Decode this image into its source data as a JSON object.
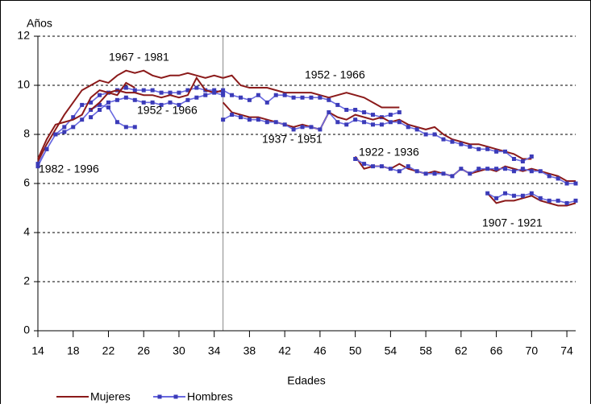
{
  "chart_data": {
    "type": "line",
    "y_label": "Años",
    "x_label": "Edades",
    "xlim": [
      14,
      75
    ],
    "xticks": [
      14,
      18,
      22,
      26,
      30,
      34,
      38,
      42,
      46,
      50,
      54,
      58,
      62,
      66,
      70,
      74
    ],
    "ylim": [
      0,
      12
    ],
    "yticks": [
      0,
      2,
      4,
      6,
      8,
      10,
      12
    ],
    "grid": true,
    "divider": 35,
    "annotations": [
      "1967 - 1981",
      "1952 - 1966",
      "1952 - 1966",
      "1982 - 1996",
      "1937 - 1951",
      "1922 - 1936",
      "1907 - 1921"
    ],
    "series": [
      {
        "name": "Mujeres",
        "color": "#8b1a1a",
        "x": [
          14,
          15,
          16,
          17,
          18,
          19,
          20,
          21,
          22,
          23,
          24,
          25,
          26,
          27,
          28,
          29,
          30,
          31,
          32,
          33,
          34,
          35
        ],
        "values": [
          6.9,
          7.6,
          8.2,
          8.8,
          9.3,
          9.8,
          10.0,
          10.2,
          10.1,
          10.4,
          10.6,
          10.5,
          10.6,
          10.4,
          10.3,
          10.4,
          10.4,
          10.5,
          10.4,
          10.3,
          10.4,
          10.3
        ]
      },
      {
        "name": "Hombres",
        "color": "#6a6ae0",
        "x": [
          14,
          15,
          16,
          17,
          18,
          19,
          20,
          21,
          22,
          23,
          24,
          25,
          26,
          27,
          28,
          29,
          30,
          31,
          32,
          33,
          34,
          35
        ],
        "values": [
          6.7,
          7.4,
          8.0,
          8.3,
          8.7,
          9.2,
          9.3,
          9.6,
          9.7,
          9.8,
          9.9,
          9.8,
          9.8,
          9.8,
          9.7,
          9.7,
          9.7,
          9.8,
          9.9,
          9.8,
          9.8,
          9.7
        ]
      },
      {
        "name": "Mujeres",
        "color": "#8b1a1a",
        "x": [
          14,
          15,
          16,
          17,
          18,
          19,
          20,
          21,
          22,
          23,
          24,
          25
        ],
        "values": [
          7.0,
          7.8,
          8.4,
          8.5,
          8.6,
          8.8,
          9.5,
          9.8,
          9.7,
          9.6,
          10.1,
          9.9
        ]
      },
      {
        "name": "Hombres",
        "color": "#6a6ae0",
        "x": [
          14,
          15,
          16,
          17,
          18,
          19,
          20,
          21,
          22,
          23,
          24,
          25
        ],
        "values": [
          6.8,
          7.4,
          8.0,
          8.1,
          8.3,
          8.6,
          9.0,
          9.2,
          9.1,
          8.5,
          8.3,
          8.3
        ]
      },
      {
        "name": "Mujeres",
        "color": "#8b1a1a",
        "x": [
          20,
          21,
          22,
          23,
          24,
          25,
          26,
          27,
          28,
          29,
          30,
          31,
          32,
          33,
          34,
          35
        ],
        "values": [
          9.0,
          9.3,
          9.7,
          9.8,
          9.7,
          9.7,
          9.6,
          9.6,
          9.5,
          9.6,
          9.5,
          9.6,
          10.3,
          9.8,
          9.7,
          9.8
        ]
      },
      {
        "name": "Hombres",
        "color": "#6a6ae0",
        "x": [
          20,
          21,
          22,
          23,
          24,
          25,
          26,
          27,
          28,
          29,
          30,
          31,
          32,
          33,
          34,
          35
        ],
        "values": [
          8.7,
          9.0,
          9.3,
          9.4,
          9.5,
          9.4,
          9.3,
          9.3,
          9.2,
          9.3,
          9.2,
          9.4,
          9.5,
          9.6,
          9.7,
          9.6
        ]
      },
      {
        "name": "Mujeres",
        "color": "#8b1a1a",
        "x": [
          35,
          36,
          37,
          38,
          39,
          40,
          41,
          42,
          43,
          44,
          45,
          46,
          47,
          48,
          49,
          50,
          51,
          52,
          53,
          54,
          55
        ],
        "values": [
          10.3,
          10.4,
          10.0,
          9.9,
          9.9,
          9.9,
          9.8,
          9.7,
          9.7,
          9.7,
          9.7,
          9.6,
          9.5,
          9.6,
          9.7,
          9.6,
          9.5,
          9.3,
          9.1,
          9.1,
          9.1
        ]
      },
      {
        "name": "Hombres",
        "color": "#6a6ae0",
        "x": [
          35,
          36,
          37,
          38,
          39,
          40,
          41,
          42,
          43,
          44,
          45,
          46,
          47,
          48,
          49,
          50,
          51,
          52,
          53,
          54,
          55
        ],
        "values": [
          9.8,
          9.6,
          9.5,
          9.4,
          9.6,
          9.3,
          9.6,
          9.6,
          9.5,
          9.5,
          9.5,
          9.5,
          9.4,
          9.2,
          9.0,
          9.0,
          8.9,
          8.8,
          8.7,
          8.8,
          8.9
        ]
      },
      {
        "name": "Mujeres",
        "color": "#8b1a1a",
        "x": [
          35,
          36,
          37,
          38,
          39,
          40,
          41,
          42,
          43,
          44,
          45,
          46,
          47,
          48,
          49,
          50,
          51,
          52,
          53,
          54,
          55,
          56,
          57,
          58,
          59,
          60,
          61,
          62,
          63,
          64,
          65,
          66,
          67,
          68,
          69,
          70
        ],
        "values": [
          9.3,
          8.9,
          8.8,
          8.7,
          8.7,
          8.6,
          8.5,
          8.4,
          8.3,
          8.4,
          8.3,
          8.2,
          8.9,
          8.7,
          8.6,
          8.8,
          8.7,
          8.6,
          8.7,
          8.5,
          8.6,
          8.4,
          8.3,
          8.2,
          8.3,
          8.0,
          7.8,
          7.7,
          7.6,
          7.6,
          7.5,
          7.4,
          7.3,
          7.2,
          7.0,
          7.0
        ]
      },
      {
        "name": "Hombres",
        "color": "#6a6ae0",
        "x": [
          35,
          36,
          37,
          38,
          39,
          40,
          41,
          42,
          43,
          44,
          45,
          46,
          47,
          48,
          49,
          50,
          51,
          52,
          53,
          54,
          55,
          56,
          57,
          58,
          59,
          60,
          61,
          62,
          63,
          64,
          65,
          66,
          67,
          68,
          69,
          70
        ],
        "values": [
          8.6,
          8.8,
          8.7,
          8.6,
          8.6,
          8.5,
          8.5,
          8.4,
          8.2,
          8.3,
          8.3,
          8.2,
          8.9,
          8.5,
          8.4,
          8.6,
          8.5,
          8.4,
          8.4,
          8.5,
          8.5,
          8.3,
          8.2,
          8.0,
          8.0,
          7.8,
          7.7,
          7.6,
          7.5,
          7.4,
          7.4,
          7.3,
          7.3,
          7.0,
          6.9,
          7.1
        ]
      },
      {
        "name": "Mujeres",
        "color": "#8b1a1a",
        "x": [
          50,
          51,
          52,
          53,
          54,
          55,
          56,
          57,
          58,
          59,
          60,
          61,
          62,
          63,
          64,
          65,
          66,
          67,
          68,
          69,
          70,
          71,
          72,
          73,
          74,
          75
        ],
        "values": [
          7.1,
          6.6,
          6.7,
          6.7,
          6.6,
          6.8,
          6.6,
          6.5,
          6.4,
          6.5,
          6.4,
          6.3,
          6.6,
          6.4,
          6.5,
          6.6,
          6.5,
          6.7,
          6.6,
          6.5,
          6.6,
          6.5,
          6.4,
          6.3,
          6.1,
          6.1
        ]
      },
      {
        "name": "Hombres",
        "color": "#6a6ae0",
        "x": [
          50,
          51,
          52,
          53,
          54,
          55,
          56,
          57,
          58,
          59,
          60,
          61,
          62,
          63,
          64,
          65,
          66,
          67,
          68,
          69,
          70,
          71,
          72,
          73,
          74,
          75
        ],
        "values": [
          7.0,
          6.8,
          6.7,
          6.7,
          6.6,
          6.5,
          6.7,
          6.5,
          6.4,
          6.4,
          6.4,
          6.3,
          6.6,
          6.4,
          6.6,
          6.6,
          6.6,
          6.6,
          6.5,
          6.6,
          6.5,
          6.5,
          6.3,
          6.2,
          6.0,
          6.0
        ]
      },
      {
        "name": "Mujeres",
        "color": "#8b1a1a",
        "x": [
          65,
          66,
          67,
          68,
          69,
          70,
          71,
          72,
          73,
          74,
          75
        ],
        "values": [
          5.6,
          5.2,
          5.3,
          5.3,
          5.4,
          5.5,
          5.3,
          5.2,
          5.1,
          5.1,
          5.2
        ]
      },
      {
        "name": "Hombres",
        "color": "#6a6ae0",
        "x": [
          65,
          66,
          67,
          68,
          69,
          70,
          71,
          72,
          73,
          74,
          75
        ],
        "values": [
          5.6,
          5.4,
          5.6,
          5.5,
          5.5,
          5.6,
          5.4,
          5.3,
          5.3,
          5.2,
          5.3
        ]
      }
    ]
  }
}
